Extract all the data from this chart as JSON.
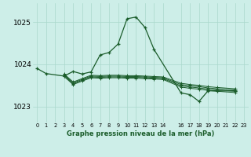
{
  "bg_color": "#cdeee8",
  "grid_color": "#aad8cc",
  "line_color": "#1a5c2a",
  "xlabel": "Graphe pression niveau de la mer (hPa)",
  "ylim": [
    1022.62,
    1025.45
  ],
  "xlim": [
    -0.5,
    23.5
  ],
  "yticks": [
    1023,
    1024,
    1025
  ],
  "ytick_labels": [
    "1023",
    "1024",
    "1025"
  ],
  "xtick_pos": [
    0,
    1,
    2,
    3,
    4,
    5,
    6,
    7,
    8,
    9,
    10,
    11,
    12,
    13,
    14,
    16,
    17,
    18,
    19,
    20,
    21,
    22,
    23
  ],
  "xtick_labels": [
    "0",
    "1",
    "2",
    "3",
    "4",
    "5",
    "6",
    "7",
    "8",
    "9",
    "10",
    "11",
    "12",
    "13",
    "14",
    "16",
    "17",
    "18",
    "19",
    "20",
    "21",
    "22",
    "23"
  ],
  "s1_x": [
    0,
    1,
    3,
    4,
    5,
    6,
    7,
    8,
    9,
    10,
    11,
    12,
    13,
    16,
    17,
    18,
    19,
    20,
    22
  ],
  "s1_y": [
    1023.9,
    1023.78,
    1023.72,
    1023.83,
    1023.77,
    1023.82,
    1024.22,
    1024.28,
    1024.48,
    1025.08,
    1025.12,
    1024.87,
    1024.35,
    1023.32,
    1023.28,
    1023.12,
    1023.37,
    1023.37,
    1023.37
  ],
  "s2_x": [
    3,
    4,
    5,
    6,
    7,
    8,
    9,
    10,
    11,
    12,
    13,
    14,
    16,
    17,
    18,
    19,
    20,
    22
  ],
  "s2_y": [
    1023.77,
    1023.58,
    1023.66,
    1023.74,
    1023.73,
    1023.74,
    1023.74,
    1023.73,
    1023.73,
    1023.72,
    1023.71,
    1023.7,
    1023.55,
    1023.52,
    1023.5,
    1023.47,
    1023.45,
    1023.42
  ],
  "s3_x": [
    3,
    4,
    5,
    6,
    7,
    8,
    9,
    10,
    11,
    12,
    13,
    14,
    16,
    17,
    18,
    19,
    20,
    22
  ],
  "s3_y": [
    1023.75,
    1023.56,
    1023.64,
    1023.72,
    1023.71,
    1023.72,
    1023.72,
    1023.71,
    1023.71,
    1023.7,
    1023.69,
    1023.68,
    1023.52,
    1023.49,
    1023.47,
    1023.44,
    1023.42,
    1023.39
  ],
  "s4_x": [
    3,
    4,
    5,
    6,
    7,
    8,
    9,
    10,
    11,
    12,
    13,
    14,
    16,
    17,
    18,
    19,
    20,
    22
  ],
  "s4_y": [
    1023.73,
    1023.54,
    1023.62,
    1023.7,
    1023.69,
    1023.7,
    1023.7,
    1023.69,
    1023.69,
    1023.68,
    1023.67,
    1023.66,
    1023.49,
    1023.46,
    1023.44,
    1023.41,
    1023.39,
    1023.36
  ],
  "s5_x": [
    3,
    4,
    5,
    6,
    7,
    8,
    9,
    10,
    11,
    12,
    13,
    14,
    16,
    17,
    18,
    19,
    20,
    22
  ],
  "s5_y": [
    1023.71,
    1023.52,
    1023.6,
    1023.68,
    1023.67,
    1023.68,
    1023.68,
    1023.67,
    1023.67,
    1023.66,
    1023.65,
    1023.64,
    1023.46,
    1023.43,
    1023.41,
    1023.38,
    1023.36,
    1023.33
  ]
}
